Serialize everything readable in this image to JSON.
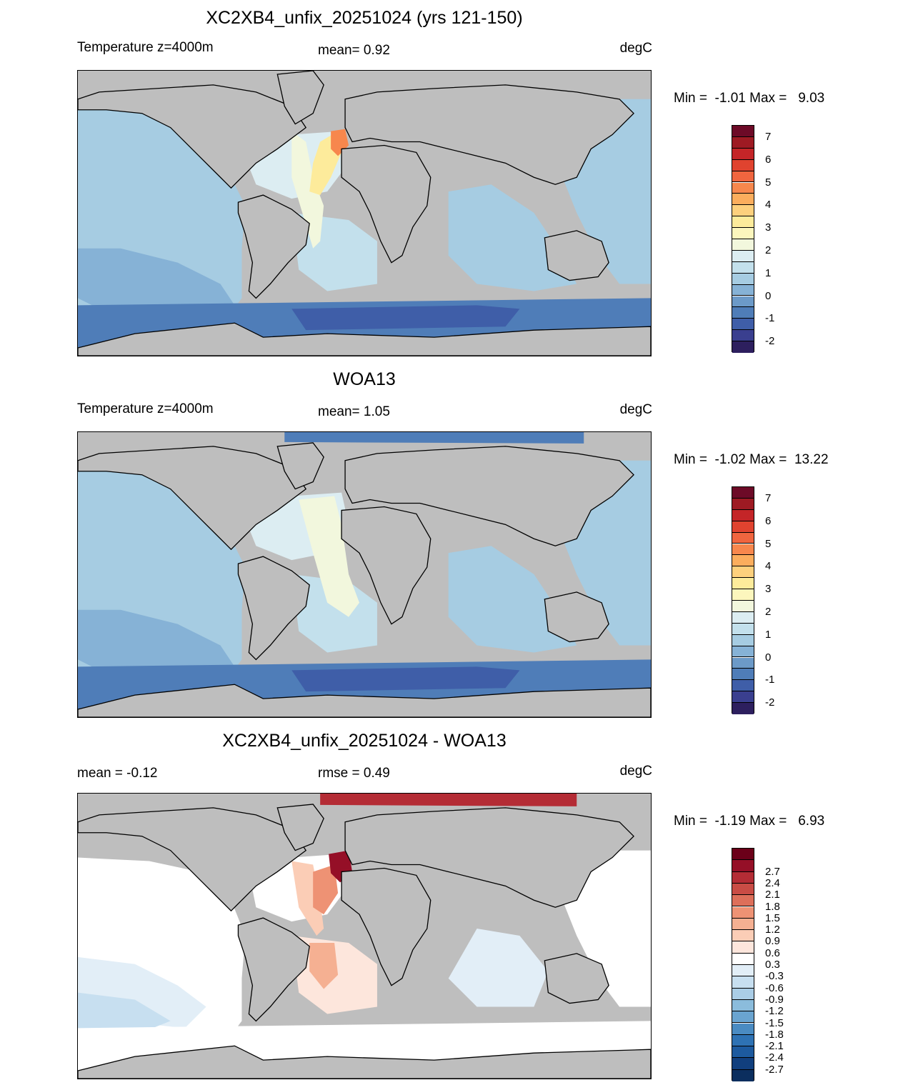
{
  "panels": [
    {
      "title": "XC2XB4_unfix_20251024 (yrs 121-150)",
      "left_label": "Temperature z=4000m",
      "center_label": "mean=   0.92",
      "units": "degC",
      "minmax": "Min =  -1.01 Max =   9.03",
      "colorbar": {
        "colors": [
          "#2d1f5e",
          "#3a3f8f",
          "#3f5ea8",
          "#4f7db8",
          "#6c9ac8",
          "#86b2d6",
          "#a6cce2",
          "#c3e0ec",
          "#dcedf2",
          "#f2f7dd",
          "#fcf6bd",
          "#fdeb9b",
          "#fdd07d",
          "#fbad5d",
          "#f7874d",
          "#f0653f",
          "#e0432f",
          "#c42528",
          "#9e1a23",
          "#6d0a27"
        ],
        "tick_labels": [
          "-2",
          "-1",
          "0",
          "1",
          "2",
          "3",
          "4",
          "5",
          "6",
          "7"
        ]
      }
    },
    {
      "title": "WOA13",
      "left_label": "Temperature z=4000m",
      "center_label": "mean=   1.05",
      "units": "degC",
      "minmax": "Min =  -1.02 Max =  13.22",
      "colorbar": {
        "colors": [
          "#2d1f5e",
          "#3a3f8f",
          "#3f5ea8",
          "#4f7db8",
          "#6c9ac8",
          "#86b2d6",
          "#a6cce2",
          "#c3e0ec",
          "#dcedf2",
          "#f2f7dd",
          "#fcf6bd",
          "#fdeb9b",
          "#fdd07d",
          "#fbad5d",
          "#f7874d",
          "#f0653f",
          "#e0432f",
          "#c42528",
          "#9e1a23",
          "#6d0a27"
        ],
        "tick_labels": [
          "-2",
          "-1",
          "0",
          "1",
          "2",
          "3",
          "4",
          "5",
          "6",
          "7"
        ]
      }
    },
    {
      "title": "XC2XB4_unfix_20251024 - WOA13",
      "left_label": "mean =  -0.12",
      "center_label": "rmse =   0.49",
      "units": "degC",
      "minmax": "Min =  -1.19 Max =   6.93",
      "colorbar": {
        "colors": [
          "#0b2e5e",
          "#113f7e",
          "#1d5a9f",
          "#2e72b4",
          "#4a8bc2",
          "#6aa4d0",
          "#8bbcdc",
          "#aacde6",
          "#c7dff0",
          "#e2eef7",
          "#ffffff",
          "#fde6dc",
          "#fbcdb6",
          "#f5b092",
          "#ee9274",
          "#dd6f5a",
          "#c94c45",
          "#b42c35",
          "#950f27",
          "#6b0019"
        ],
        "tick_labels": [
          "-2.7",
          "-2.4",
          "-2.1",
          "-1.8",
          "-1.5",
          "-1.2",
          "-0.9",
          "-0.6",
          "-0.3",
          "0.3",
          "0.6",
          "0.9",
          "1.2",
          "1.5",
          "1.8",
          "2.1",
          "2.4",
          "2.7"
        ]
      }
    }
  ]
}
